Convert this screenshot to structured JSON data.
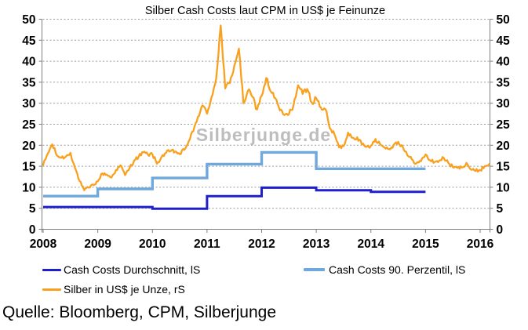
{
  "title": "Silber Cash Costs laut CPM in US$ je Feinunze",
  "watermark": "Silberjunge.de",
  "source": "Quelle: Bloomberg, CPM, Silberjunge",
  "colors": {
    "average_line": "#1f1fcc",
    "percentile_line": "#6fa8dc",
    "silver_line": "#f9a11e",
    "watermark_gray": "#bdbdbd",
    "grid_gray": "#9a9a9a",
    "axis_gray": "#7f7f7f"
  },
  "legend": {
    "items": [
      {
        "label": "Cash Costs Durchschnitt, lS",
        "color": "#1f1fcc"
      },
      {
        "label": "Cash Costs 90. Perzentil, lS",
        "color": "#6fa8dc"
      },
      {
        "label": "Silber in US$ je Unze, rS",
        "color": "#f9a11e"
      }
    ]
  },
  "chart_data": {
    "type": "line",
    "title": "Silber Cash Costs laut CPM in US$ je Feinunze",
    "xlabel": "",
    "ylabel": "",
    "x_ticks": [
      2008,
      2009,
      2010,
      2011,
      2012,
      2013,
      2014,
      2015,
      2016
    ],
    "y_ticks": [
      0,
      5,
      10,
      15,
      20,
      25,
      30,
      35,
      40,
      45,
      50
    ],
    "ylim_left": [
      0,
      50
    ],
    "ylim_right": [
      0,
      50
    ],
    "grid": "horizontal-dotted",
    "legend_position": "bottom",
    "series": [
      {
        "name": "Cash Costs Durchschnitt, lS",
        "axis": "left",
        "style": "step",
        "color": "#1f1fcc",
        "points": [
          [
            2008.0,
            5.3
          ],
          [
            2010.0,
            4.9
          ],
          [
            2011.0,
            7.9
          ],
          [
            2012.0,
            9.9
          ],
          [
            2013.0,
            9.3
          ],
          [
            2014.0,
            8.9
          ],
          [
            2015.0,
            8.9
          ]
        ]
      },
      {
        "name": "Cash Costs 90. Perzentil, lS",
        "axis": "left",
        "style": "step",
        "color": "#6fa8dc",
        "points": [
          [
            2008.0,
            7.9
          ],
          [
            2009.0,
            9.6
          ],
          [
            2010.0,
            12.2
          ],
          [
            2011.0,
            15.5
          ],
          [
            2012.0,
            18.3
          ],
          [
            2013.0,
            14.4
          ],
          [
            2015.0,
            14.4
          ]
        ]
      },
      {
        "name": "Silber in US$ je Unze, rS",
        "axis": "right",
        "style": "line",
        "color": "#f9a11e",
        "x_start": 2008.0,
        "x_step_years": 0.0833333,
        "values": [
          15.3,
          18.0,
          20.2,
          17.6,
          17.0,
          17.3,
          18.2,
          14.6,
          11.5,
          9.3,
          9.9,
          10.6,
          11.4,
          13.3,
          13.0,
          12.3,
          14.1,
          15.2,
          12.9,
          14.6,
          16.4,
          17.3,
          18.3,
          17.8,
          17.9,
          15.6,
          17.2,
          18.2,
          18.6,
          18.5,
          17.9,
          18.9,
          21.0,
          23.4,
          26.8,
          29.5,
          27.5,
          31.5,
          35.8,
          48.5,
          33.5,
          34.8,
          39.0,
          43.0,
          30.0,
          33.0,
          31.5,
          28.5,
          31.8,
          36.0,
          32.8,
          31.2,
          28.3,
          27.2,
          27.4,
          29.5,
          34.3,
          32.2,
          33.4,
          30.2,
          31.2,
          29.0,
          28.6,
          24.0,
          22.6,
          19.5,
          19.8,
          23.0,
          21.8,
          21.9,
          20.2,
          19.6,
          19.9,
          21.5,
          20.3,
          19.5,
          19.1,
          20.1,
          20.8,
          19.6,
          17.6,
          16.6,
          15.7,
          16.2,
          17.8,
          16.4,
          16.0,
          16.3,
          17.0,
          15.8,
          14.8,
          14.6,
          14.7,
          15.8,
          14.2,
          13.9,
          14.1,
          15.0,
          15.5
        ]
      }
    ]
  }
}
